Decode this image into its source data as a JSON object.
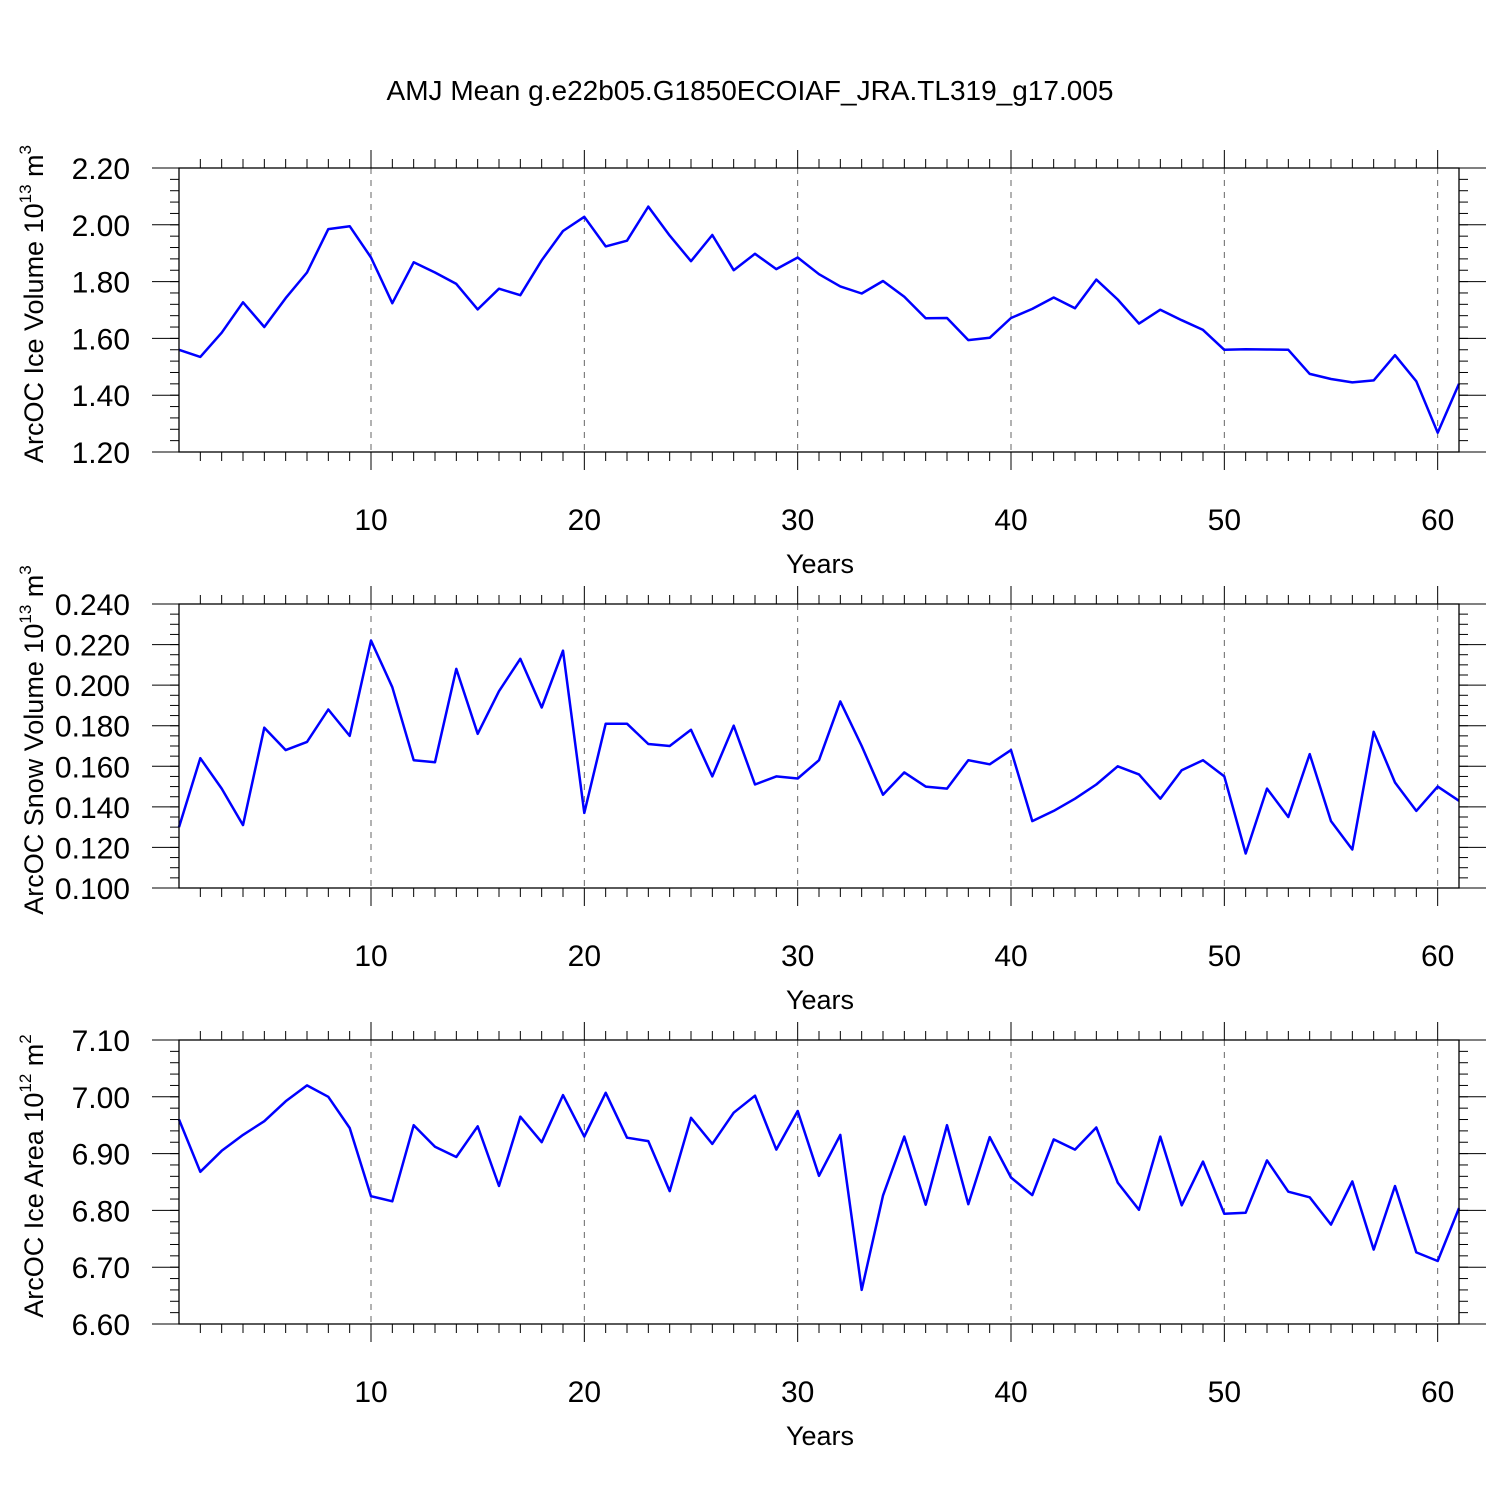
{
  "title": "AMJ Mean g.e22b05.G1850ECOIAF_JRA.TL319_g17.005",
  "line_color": "#0000ff",
  "chart_data": [
    {
      "type": "line",
      "ylabel_main": "ArcOC Ice Volume 10",
      "ylabel_exp": "13",
      "ylabel_unit": " m",
      "ylabel_unit_exp": "3",
      "xlabel": "Years",
      "xlim": [
        1,
        61
      ],
      "ylim": [
        1.2,
        2.2
      ],
      "major_step": 0.2,
      "minor_step": 0.04,
      "decimals": 2,
      "xticks": [
        10,
        20,
        30,
        40,
        50,
        60
      ],
      "xtick_labels": [
        "10",
        "20",
        "30",
        "40",
        "50",
        "60"
      ],
      "ytick_labels": [
        "1.20",
        "1.40",
        "1.60",
        "1.80",
        "2.00",
        "2.20"
      ],
      "x": [
        1,
        2,
        3,
        4,
        5,
        6,
        7,
        8,
        9,
        10,
        11,
        12,
        13,
        14,
        15,
        16,
        17,
        18,
        19,
        20,
        21,
        22,
        23,
        24,
        25,
        26,
        27,
        28,
        29,
        30,
        31,
        32,
        33,
        34,
        35,
        36,
        37,
        38,
        39,
        40,
        41,
        42,
        43,
        44,
        45,
        46,
        47,
        48,
        49,
        50,
        51,
        52,
        53,
        54,
        55,
        56,
        57,
        58,
        59,
        60,
        61
      ],
      "values": [
        1.56,
        1.535,
        1.62,
        1.727,
        1.64,
        1.742,
        1.832,
        1.985,
        1.995,
        1.885,
        1.724,
        1.868,
        1.832,
        1.792,
        1.702,
        1.775,
        1.752,
        1.875,
        1.978,
        2.028,
        1.924,
        1.944,
        2.064,
        1.962,
        1.872,
        1.964,
        1.84,
        1.898,
        1.844,
        1.885,
        1.826,
        1.783,
        1.758,
        1.802,
        1.747,
        1.671,
        1.672,
        1.594,
        1.602,
        1.672,
        1.704,
        1.744,
        1.706,
        1.807,
        1.737,
        1.652,
        1.701,
        1.664,
        1.63,
        1.56,
        1.562,
        1.561,
        1.56,
        1.475,
        1.457,
        1.445,
        1.452,
        1.541,
        1.449,
        1.268,
        1.44
      ]
    },
    {
      "type": "line",
      "ylabel_main": "ArcOC Snow Volume 10",
      "ylabel_exp": "13",
      "ylabel_unit": " m",
      "ylabel_unit_exp": "3",
      "xlabel": "Years",
      "xlim": [
        1,
        61
      ],
      "ylim": [
        0.1,
        0.24
      ],
      "major_step": 0.02,
      "minor_step": 0.005,
      "decimals": 3,
      "xticks": [
        10,
        20,
        30,
        40,
        50,
        60
      ],
      "xtick_labels": [
        "10",
        "20",
        "30",
        "40",
        "50",
        "60"
      ],
      "ytick_labels": [
        "0.100",
        "0.120",
        "0.140",
        "0.160",
        "0.180",
        "0.200",
        "0.220",
        "0.240"
      ],
      "x": [
        1,
        2,
        3,
        4,
        5,
        6,
        7,
        8,
        9,
        10,
        11,
        12,
        13,
        14,
        15,
        16,
        17,
        18,
        19,
        20,
        21,
        22,
        23,
        24,
        25,
        26,
        27,
        28,
        29,
        30,
        31,
        32,
        33,
        34,
        35,
        36,
        37,
        38,
        39,
        40,
        41,
        42,
        43,
        44,
        45,
        46,
        47,
        48,
        49,
        50,
        51,
        52,
        53,
        54,
        55,
        56,
        57,
        58,
        59,
        60,
        61
      ],
      "values": [
        0.13,
        0.164,
        0.149,
        0.131,
        0.179,
        0.168,
        0.172,
        0.188,
        0.175,
        0.222,
        0.199,
        0.163,
        0.162,
        0.208,
        0.176,
        0.197,
        0.213,
        0.189,
        0.217,
        0.137,
        0.181,
        0.181,
        0.171,
        0.17,
        0.178,
        0.155,
        0.18,
        0.151,
        0.155,
        0.154,
        0.163,
        0.192,
        0.17,
        0.146,
        0.157,
        0.15,
        0.149,
        0.163,
        0.161,
        0.168,
        0.133,
        0.138,
        0.144,
        0.151,
        0.16,
        0.156,
        0.144,
        0.158,
        0.163,
        0.155,
        0.117,
        0.149,
        0.135,
        0.166,
        0.133,
        0.119,
        0.177,
        0.152,
        0.138,
        0.15,
        0.143
      ]
    },
    {
      "type": "line",
      "ylabel_main": "ArcOC Ice Area 10",
      "ylabel_exp": "12",
      "ylabel_unit": " m",
      "ylabel_unit_exp": "2",
      "xlabel": "Years",
      "xlim": [
        1,
        61
      ],
      "ylim": [
        6.6,
        7.1
      ],
      "major_step": 0.1,
      "minor_step": 0.02,
      "decimals": 2,
      "xticks": [
        10,
        20,
        30,
        40,
        50,
        60
      ],
      "xtick_labels": [
        "10",
        "20",
        "30",
        "40",
        "50",
        "60"
      ],
      "ytick_labels": [
        "6.60",
        "6.70",
        "6.80",
        "6.90",
        "7.00",
        "7.10"
      ],
      "x": [
        1,
        2,
        3,
        4,
        5,
        6,
        7,
        8,
        9,
        10,
        11,
        12,
        13,
        14,
        15,
        16,
        17,
        18,
        19,
        20,
        21,
        22,
        23,
        24,
        25,
        26,
        27,
        28,
        29,
        30,
        31,
        32,
        33,
        34,
        35,
        36,
        37,
        38,
        39,
        40,
        41,
        42,
        43,
        44,
        45,
        46,
        47,
        48,
        49,
        50,
        51,
        52,
        53,
        54,
        55,
        56,
        57,
        58,
        59,
        60,
        61
      ],
      "values": [
        6.96,
        6.868,
        6.905,
        6.933,
        6.957,
        6.992,
        7.02,
        7.0,
        6.945,
        6.825,
        6.816,
        6.95,
        6.912,
        6.894,
        6.948,
        6.843,
        6.965,
        6.92,
        7.003,
        6.93,
        7.007,
        6.928,
        6.922,
        6.834,
        6.963,
        6.917,
        6.972,
        7.002,
        6.907,
        6.975,
        6.861,
        6.933,
        6.66,
        6.826,
        6.93,
        6.81,
        6.95,
        6.811,
        6.929,
        6.858,
        6.827,
        6.925,
        6.907,
        6.946,
        6.849,
        6.801,
        6.93,
        6.809,
        6.886,
        6.794,
        6.796,
        6.888,
        6.833,
        6.823,
        6.775,
        6.851,
        6.731,
        6.843,
        6.726,
        6.711,
        6.804
      ]
    }
  ]
}
